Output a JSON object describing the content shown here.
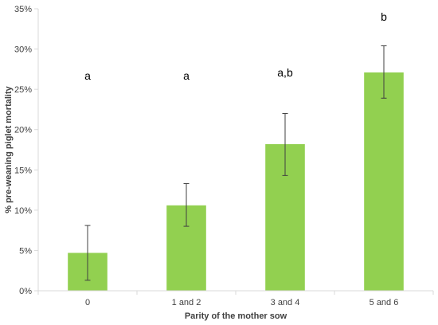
{
  "chart_data": {
    "type": "bar",
    "categories": [
      "0",
      "1 and 2",
      "3 and 4",
      "5 and 6"
    ],
    "values": [
      4.7,
      10.6,
      18.2,
      27.1
    ],
    "error_low": [
      1.3,
      8.0,
      14.3,
      23.9
    ],
    "error_high": [
      8.1,
      13.3,
      22.0,
      30.4
    ],
    "significance_labels": [
      "a",
      "a",
      "a,b",
      "b"
    ],
    "title": "",
    "xlabel": "Parity of the mother sow",
    "ylabel": "% pre-weaning piglet mortality",
    "ylim": [
      0,
      35
    ],
    "yticks": [
      0,
      5,
      10,
      15,
      20,
      25,
      30,
      35
    ],
    "ytick_labels": [
      "0%",
      "5%",
      "10%",
      "15%",
      "20%",
      "25%",
      "30%",
      "35%"
    ],
    "grid": false,
    "legend": "none",
    "bar_color": "#92d050",
    "axis_color": "#d9d9d9",
    "errorbar_color": "#404040"
  }
}
